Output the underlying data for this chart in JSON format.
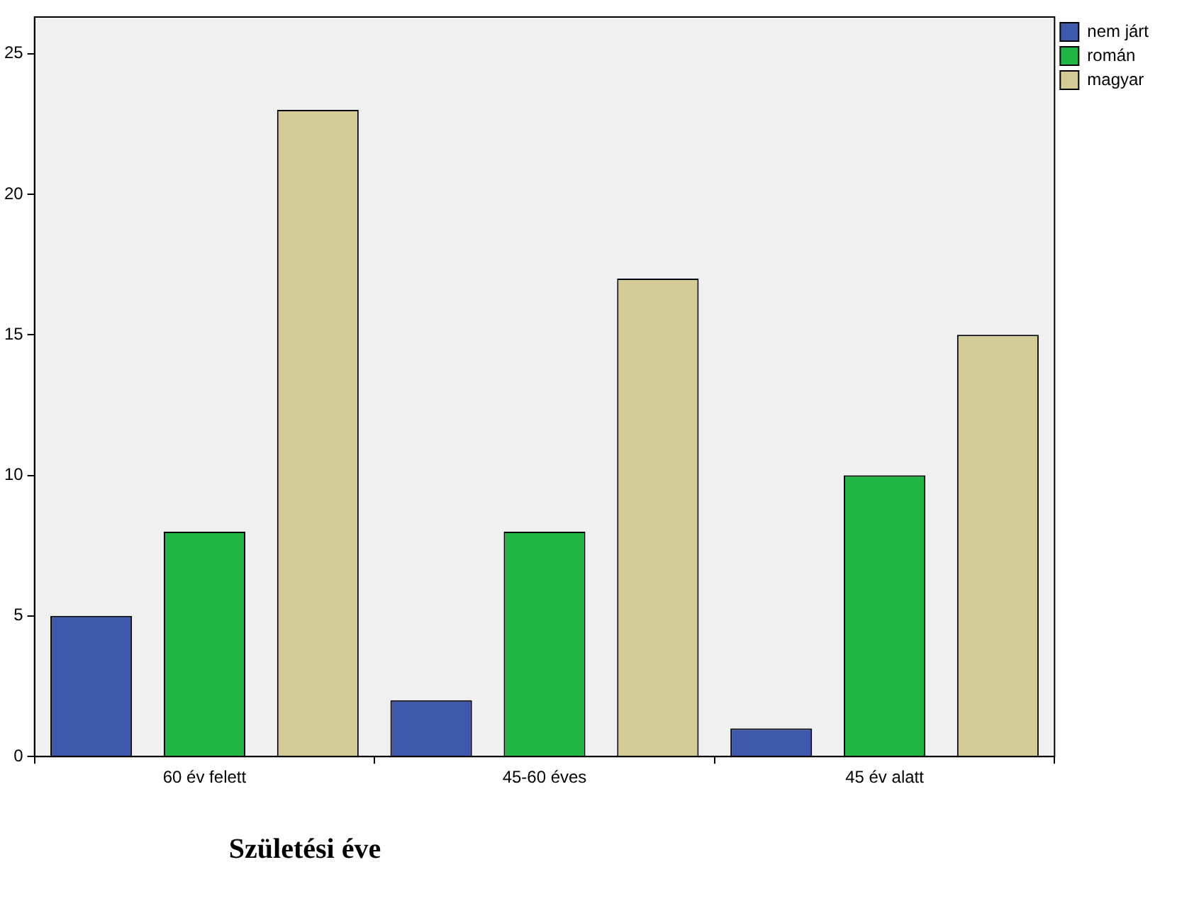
{
  "chart_data": {
    "type": "bar",
    "xlabel": "Születési éve",
    "categories": [
      "60 év felett",
      "45-60 éves",
      "45 év alatt"
    ],
    "series": [
      {
        "name": "nem járt",
        "color": "#3e58ac",
        "values": [
          5,
          2,
          1
        ]
      },
      {
        "name": "román",
        "color": "#21b546",
        "values": [
          8,
          8,
          10
        ]
      },
      {
        "name": "magyar",
        "color": "#d4cc96",
        "values": [
          23,
          17,
          15
        ]
      }
    ],
    "ylim": [
      0,
      26.3
    ],
    "yticks": [
      0,
      5,
      10,
      15,
      20,
      25
    ],
    "grid": false,
    "legend": "right"
  }
}
